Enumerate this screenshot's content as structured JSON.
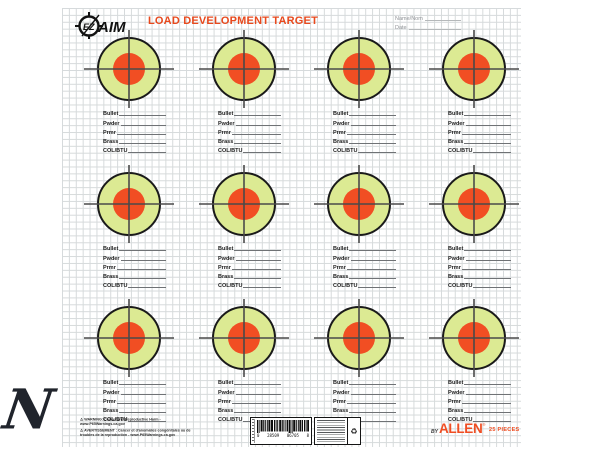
{
  "header": {
    "logo_ez": "EZ",
    "logo_aim": "AIM",
    "title": "LOAD DEVELOPMENT TARGET",
    "name_label": "Name/Nom",
    "date_label": "Date"
  },
  "targets": {
    "grid_rows": 3,
    "grid_cols": 4,
    "fields": [
      "Bullet",
      "Pwder",
      "Prmr",
      "Brass",
      "COL/BTU"
    ],
    "colors": {
      "outer_ring": "#1a1a1a",
      "outer_fill": "#dcea93",
      "bull_fill": "#f14e23",
      "crosshair": "#4a4a4a"
    }
  },
  "footer": {
    "warning_en": "WARNING: Cancer and Reproductive Harm - www.P65Warnings.ca.gov",
    "warning_fr": "AVERTISSEMENT : Cancer et d'anomalies congénitales ou de troubles de la reproduction - www.P65Warnings.ca.gov",
    "barcode_digit_left": "0",
    "barcode_digits_1": "28509",
    "barcode_digits_2": "06705",
    "barcode_digit_right": "8",
    "brand_by": "BY",
    "brand_name": "ALLEN",
    "brand_reg": "®",
    "pieces_label": "25 PIECES"
  },
  "colors": {
    "title_red": "#e8491d",
    "brand_orange": "#f04e23",
    "grid_line": "#d6dadb"
  },
  "watermark": {
    "letter": "N"
  }
}
